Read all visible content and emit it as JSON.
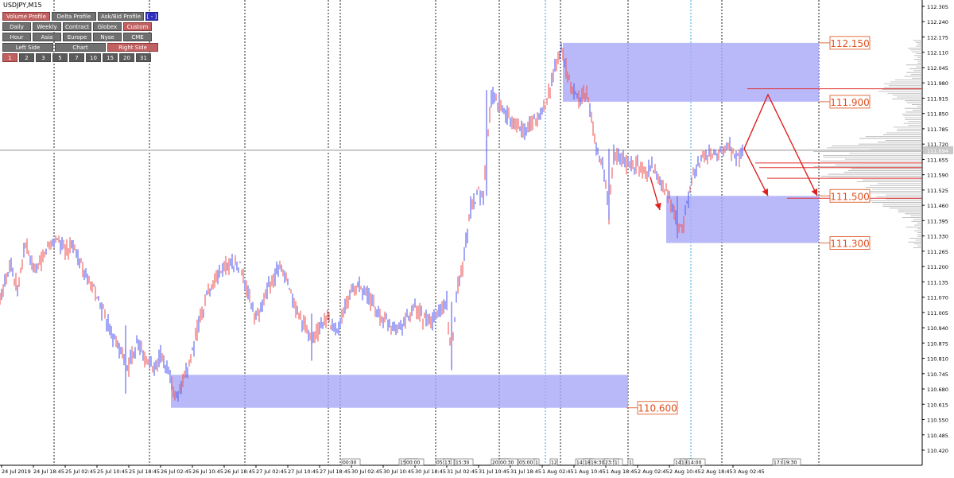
{
  "symbol": "USDJPY,M15",
  "panel": {
    "row1": [
      {
        "label": "Volume Profile",
        "active": true
      },
      {
        "label": "Delta Profile",
        "active": false
      },
      {
        "label": "Ask/Bid Profile",
        "active": false
      },
      {
        "label": "[ - ]",
        "active": false
      }
    ],
    "row2": [
      {
        "label": "Daily",
        "active": false
      },
      {
        "label": "Weekly",
        "active": false
      },
      {
        "label": "Contract",
        "active": false
      },
      {
        "label": "Globex",
        "active": false
      },
      {
        "label": "Custom",
        "active": true
      }
    ],
    "row3": [
      {
        "label": "Hour",
        "active": false
      },
      {
        "label": "Asia",
        "active": false
      },
      {
        "label": "Europe",
        "active": false
      },
      {
        "label": "Nyse",
        "active": false
      },
      {
        "label": "CME",
        "active": false
      }
    ],
    "row4": [
      {
        "label": "Left Side",
        "active": false
      },
      {
        "label": "Chart",
        "active": false
      },
      {
        "label": "Right Side",
        "active": true
      }
    ],
    "row5": [
      {
        "label": "1",
        "active": true
      },
      {
        "label": "2",
        "active": false
      },
      {
        "label": "3",
        "active": false
      },
      {
        "label": "5",
        "active": false
      },
      {
        "label": "7",
        "active": false
      },
      {
        "label": "10",
        "active": false
      },
      {
        "label": "15",
        "active": false
      },
      {
        "label": "20",
        "active": false
      },
      {
        "label": "31",
        "active": false
      }
    ]
  },
  "chart_data": {
    "type": "candlestick",
    "symbol": "USDJPY",
    "timeframe": "M15",
    "ylim": [
      110.4,
      112.34
    ],
    "y_ticks": [
      "112.305",
      "112.240",
      "112.175",
      "112.110",
      "112.045",
      "111.980",
      "111.915",
      "111.850",
      "111.785",
      "111.720",
      "111.655",
      "111.590",
      "111.525",
      "111.460",
      "111.395",
      "111.330",
      "111.265",
      "111.200",
      "111.135",
      "111.070",
      "111.005",
      "110.940",
      "110.875",
      "110.810",
      "110.745",
      "110.680",
      "110.615",
      "110.550",
      "110.485",
      "110.420"
    ],
    "x_ticks": [
      "24 Jul 2019",
      "24 Jul 18:45",
      "25 Jul 02:45",
      "25 Jul 10:45",
      "25 Jul 18:45",
      "26 Jul 02:45",
      "26 Jul 10:45",
      "26 Jul 18:45",
      "27 Jul 02:45",
      "27 Jul 10:45",
      "27 Jul 18:45",
      "30 Jul 02:45",
      "30 Jul 10:45",
      "30 Jul 18:45",
      "31 Jul 02:45",
      "31 Jul 10:45",
      "31 Jul 18:45",
      "1 Aug 02:45",
      "1 Aug 10:45",
      "1 Aug 18:45",
      "2 Aug 02:45",
      "2 Aug 10:45",
      "2 Aug 18:45",
      "3 Aug 02:45"
    ],
    "current_price": "111.694",
    "price_path": [
      [
        0,
        111.05
      ],
      [
        12,
        111.22
      ],
      [
        22,
        111.1
      ],
      [
        32,
        111.3
      ],
      [
        42,
        111.18
      ],
      [
        52,
        111.22
      ],
      [
        62,
        111.3
      ],
      [
        72,
        111.32
      ],
      [
        82,
        111.26
      ],
      [
        92,
        111.3
      ],
      [
        102,
        111.2
      ],
      [
        112,
        111.12
      ],
      [
        122,
        111.08
      ],
      [
        132,
        110.98
      ],
      [
        142,
        110.9
      ],
      [
        152,
        110.84
      ],
      [
        162,
        110.78
      ],
      [
        172,
        110.88
      ],
      [
        182,
        110.82
      ],
      [
        192,
        110.76
      ],
      [
        202,
        110.82
      ],
      [
        212,
        110.74
      ],
      [
        222,
        110.64
      ],
      [
        232,
        110.72
      ],
      [
        242,
        110.84
      ],
      [
        252,
        110.98
      ],
      [
        262,
        111.1
      ],
      [
        272,
        111.15
      ],
      [
        282,
        111.2
      ],
      [
        292,
        111.22
      ],
      [
        302,
        111.2
      ],
      [
        312,
        111.08
      ],
      [
        322,
        110.98
      ],
      [
        332,
        111.06
      ],
      [
        342,
        111.14
      ],
      [
        352,
        111.2
      ],
      [
        362,
        111.12
      ],
      [
        372,
        111.02
      ],
      [
        382,
        110.96
      ],
      [
        392,
        110.88
      ],
      [
        402,
        110.94
      ],
      [
        412,
        110.98
      ],
      [
        422,
        110.92
      ],
      [
        432,
        111.0
      ],
      [
        442,
        111.1
      ],
      [
        452,
        111.12
      ],
      [
        462,
        111.08
      ],
      [
        472,
        111.02
      ],
      [
        482,
        110.98
      ],
      [
        492,
        110.96
      ],
      [
        502,
        110.94
      ],
      [
        512,
        110.98
      ],
      [
        522,
        111.02
      ],
      [
        532,
        110.98
      ],
      [
        542,
        110.96
      ],
      [
        552,
        111.0
      ],
      [
        562,
        111.05
      ],
      [
        568,
        110.78
      ],
      [
        574,
        111.1
      ],
      [
        582,
        111.2
      ],
      [
        592,
        111.45
      ],
      [
        602,
        111.52
      ],
      [
        608,
        111.5
      ],
      [
        614,
        111.8
      ],
      [
        618,
        111.9
      ],
      [
        622,
        111.94
      ],
      [
        632,
        111.86
      ],
      [
        642,
        111.82
      ],
      [
        652,
        111.8
      ],
      [
        662,
        111.78
      ],
      [
        672,
        111.82
      ],
      [
        682,
        111.86
      ],
      [
        692,
        111.95
      ],
      [
        700,
        112.08
      ],
      [
        706,
        112.12
      ],
      [
        712,
        112.04
      ],
      [
        718,
        111.96
      ],
      [
        728,
        111.92
      ],
      [
        738,
        111.94
      ],
      [
        744,
        111.84
      ],
      [
        748,
        111.72
      ],
      [
        756,
        111.64
      ],
      [
        762,
        111.56
      ],
      [
        766,
        111.42
      ],
      [
        772,
        111.68
      ],
      [
        782,
        111.66
      ],
      [
        792,
        111.62
      ],
      [
        802,
        111.64
      ],
      [
        812,
        111.6
      ],
      [
        822,
        111.62
      ],
      [
        832,
        111.56
      ],
      [
        842,
        111.48
      ],
      [
        852,
        111.38
      ],
      [
        858,
        111.36
      ],
      [
        864,
        111.46
      ],
      [
        872,
        111.58
      ],
      [
        882,
        111.66
      ],
      [
        892,
        111.68
      ],
      [
        902,
        111.66
      ],
      [
        912,
        111.72
      ],
      [
        922,
        111.68
      ],
      [
        930,
        111.66
      ],
      [
        936,
        111.7
      ]
    ],
    "zones": [
      {
        "from_x": 708,
        "to_x": 1030,
        "y_high": 112.15,
        "y_low": 111.9,
        "label": "112.150",
        "label_low": "111.900"
      },
      {
        "from_x": 838,
        "to_x": 1030,
        "y_high": 111.5,
        "y_low": 111.3,
        "label": "111.500",
        "label_low": "111.300"
      },
      {
        "from_x": 215,
        "to_x": 790,
        "y_high": 110.74,
        "y_low": 110.6,
        "label": "110.600"
      }
    ],
    "session_markers": [
      "00:00",
      "15:30",
      "00:00",
      "05:00",
      "13",
      "15:30",
      "20:30",
      "00:30",
      "05:00",
      "1",
      "12",
      "14:30",
      "18",
      "19:30",
      "23:50",
      "1",
      "1",
      "14:30",
      "1",
      "14:00",
      "17:0",
      "19:30"
    ],
    "projections": [
      {
        "points": [
          [
            936,
            111.7
          ],
          [
            966,
            111.93
          ],
          [
            1028,
            111.5
          ]
        ]
      },
      {
        "points": [
          [
            936,
            111.7
          ],
          [
            966,
            111.5
          ]
        ]
      },
      {
        "points": [
          [
            818,
            111.58
          ],
          [
            830,
            111.44
          ]
        ]
      }
    ]
  }
}
